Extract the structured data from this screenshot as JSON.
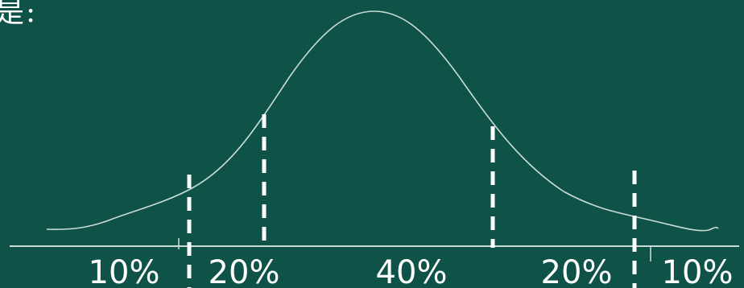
{
  "heading": "是:",
  "diagram": {
    "segments": [
      {
        "label": "10%"
      },
      {
        "label": "20%"
      },
      {
        "label": "40%"
      },
      {
        "label": "20%"
      },
      {
        "label": "10%"
      }
    ],
    "colors": {
      "background": "#0f5348",
      "curve": "#c9dcd6",
      "dashes": "#ffffff",
      "text": "#ffffff"
    }
  }
}
